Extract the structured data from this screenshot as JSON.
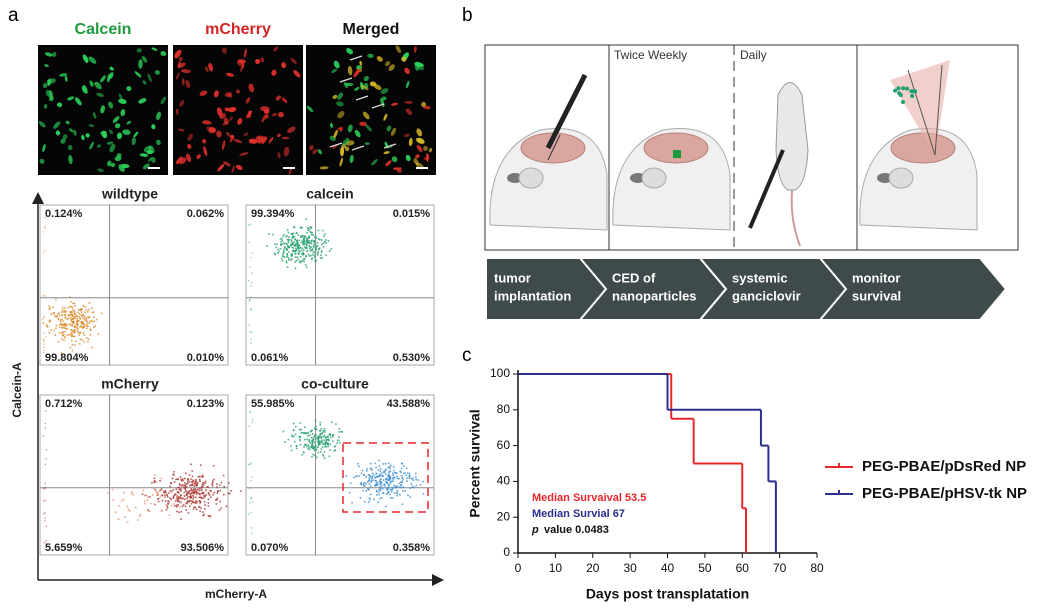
{
  "panel_a": {
    "label": "a",
    "images": [
      "Calcein",
      "mCherry",
      "Merged"
    ],
    "flow_plots": [
      {
        "title": "wildtype",
        "quadrants": [
          "0.124%",
          "0.062%",
          "99.804%",
          "0.010%"
        ]
      },
      {
        "title": "calcein",
        "quadrants": [
          "99.394%",
          "0.015%",
          "0.061%",
          "0.530%"
        ]
      },
      {
        "title": "mCherry",
        "quadrants": [
          "0.712%",
          "0.123%",
          "5.659%",
          "93.506%"
        ]
      },
      {
        "title": "co-culture",
        "quadrants": [
          "55.985%",
          "43.588%",
          "0.070%",
          "0.358%"
        ]
      }
    ],
    "y_axis_label": "Calcein-A",
    "x_axis_label": "mCherry-A"
  },
  "panel_b": {
    "label": "b",
    "stage_notes": [
      "Twice Weekly",
      "Daily"
    ],
    "steps": [
      [
        "tumor",
        "implantation"
      ],
      [
        "CED of",
        "nanoparticles"
      ],
      [
        "systemic",
        "ganciclovir"
      ],
      [
        "monitor",
        "survival"
      ]
    ]
  },
  "panel_c": {
    "label": "c",
    "type": "step",
    "x_label": "Days post transplatation",
    "y_label": "Percent survival",
    "xlim": [
      0,
      80
    ],
    "ylim": [
      0,
      100
    ],
    "xticks": [
      0,
      10,
      20,
      30,
      40,
      50,
      60,
      70,
      80
    ],
    "yticks": [
      0,
      20,
      40,
      60,
      80,
      100
    ],
    "series": [
      {
        "name": "PEG-PBAE/pDsRed NP",
        "color": "#e8272a",
        "x": [
          0,
          41,
          47,
          60,
          61
        ],
        "values": [
          100,
          75,
          50,
          25,
          0
        ]
      },
      {
        "name": "PEG-PBAE/pHSV-tk NP",
        "color": "#2b2f8f",
        "x": [
          0,
          40,
          65,
          67,
          69
        ],
        "values": [
          100,
          80,
          60,
          40,
          0
        ]
      }
    ],
    "annotations": [
      "Median Survaival 53.5",
      "Median Survial 67"
    ],
    "p_symbol": "p",
    "p_text": "value 0.0483"
  }
}
